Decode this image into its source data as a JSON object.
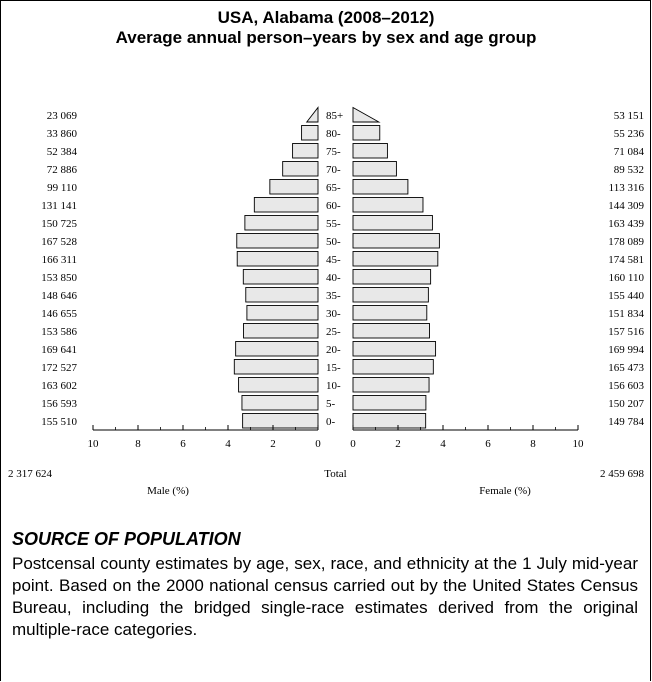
{
  "chart_data": {
    "type": "bar",
    "title": "USA, Alabama (2008–2012)",
    "subtitle": "Average annual person–years by sex and age group",
    "categories": [
      "85+",
      "80-",
      "75-",
      "70-",
      "65-",
      "60-",
      "55-",
      "50-",
      "45-",
      "40-",
      "35-",
      "30-",
      "25-",
      "20-",
      "15-",
      "10-",
      "5-",
      "0-"
    ],
    "series": [
      {
        "name": "Male (%)",
        "side": "left",
        "counts": [
          "23 069",
          "33 860",
          "52 384",
          "72 886",
          "99 110",
          "131 141",
          "150 725",
          "167 528",
          "166 311",
          "153 850",
          "148 646",
          "146 655",
          "153 586",
          "169 641",
          "172 527",
          "163 602",
          "156 593",
          "155 510"
        ],
        "values": [
          0.5,
          0.73,
          1.13,
          1.57,
          2.14,
          2.83,
          3.25,
          3.61,
          3.59,
          3.32,
          3.21,
          3.16,
          3.31,
          3.66,
          3.72,
          3.53,
          3.38,
          3.35
        ],
        "total": "2 317 624"
      },
      {
        "name": "Female (%)",
        "side": "right",
        "counts": [
          "53 151",
          "55 236",
          "71 084",
          "89 532",
          "113 316",
          "144 309",
          "163 439",
          "178 089",
          "174 581",
          "160 110",
          "155 440",
          "151 834",
          "157 516",
          "169 994",
          "165 473",
          "156 603",
          "150 207",
          "149 784"
        ],
        "values": [
          1.15,
          1.19,
          1.53,
          1.93,
          2.44,
          3.11,
          3.53,
          3.84,
          3.77,
          3.45,
          3.35,
          3.28,
          3.4,
          3.67,
          3.57,
          3.38,
          3.24,
          3.23
        ],
        "total": "2 459 698"
      }
    ],
    "xlim": [
      0,
      10
    ],
    "xticks": [
      "10",
      "8",
      "6",
      "4",
      "2",
      "0"
    ],
    "xticks_right": [
      "0",
      "2",
      "4",
      "6",
      "8",
      "10"
    ],
    "center_label": "Total",
    "bar_color": "#e8e8e8"
  },
  "source": {
    "heading": "SOURCE OF POPULATION",
    "text": "Postcensal county estimates by age, sex, race, and ethnicity at the 1 July mid-year point. Based on the 2000 national census carried out by the United States Census Bureau, including the bridged single-race estimates derived from the original multiple-race categories."
  }
}
